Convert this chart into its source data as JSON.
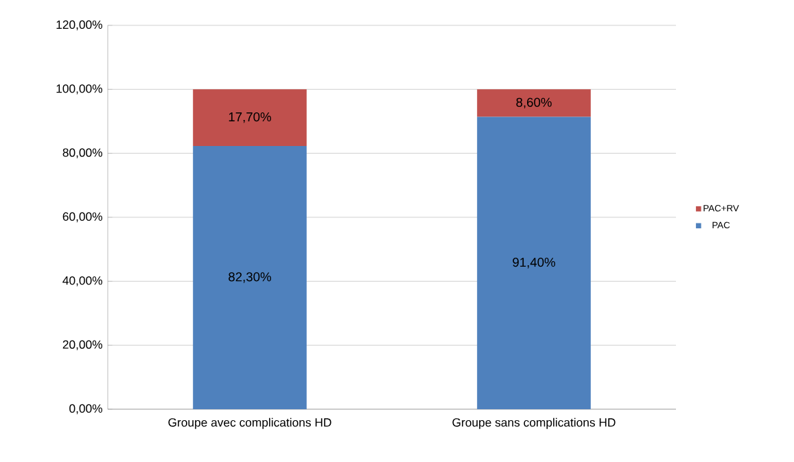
{
  "chart_data": {
    "type": "bar",
    "stacked": true,
    "categories": [
      "Groupe avec complications HD",
      "Groupe sans complications HD"
    ],
    "series": [
      {
        "name": "PAC",
        "color": "#4f81bd",
        "values": [
          82.3,
          91.4
        ],
        "value_labels": [
          "82,30%",
          "91,40%"
        ]
      },
      {
        "name": "PAC+RV",
        "color": "#c0504d",
        "values": [
          17.7,
          8.6
        ],
        "value_labels": [
          "17,70%",
          "8,60%"
        ]
      }
    ],
    "ylim": [
      0,
      120
    ],
    "yticks": [
      {
        "value": 0,
        "label": "0,00%"
      },
      {
        "value": 20,
        "label": "20,00%"
      },
      {
        "value": 40,
        "label": "40,00%"
      },
      {
        "value": 60,
        "label": "60,00%"
      },
      {
        "value": 80,
        "label": "80,00%"
      },
      {
        "value": 100,
        "label": "100,00%"
      },
      {
        "value": 120,
        "label": "120,00%"
      }
    ],
    "grid": "y",
    "legend": "right"
  }
}
